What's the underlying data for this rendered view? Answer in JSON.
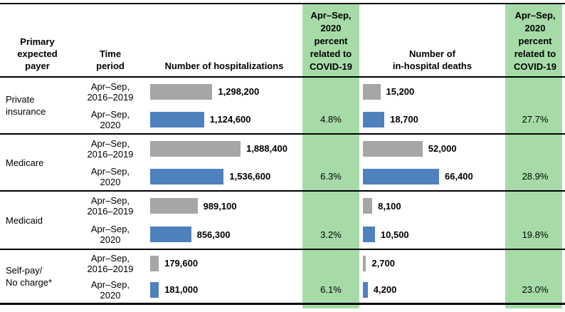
{
  "colors": {
    "green_band": "#A6DBA8",
    "bar_baseline_gray": "#A6A6A6",
    "bar_2020_blue": "#4E81BD",
    "border_black": "#000000"
  },
  "headers": {
    "payer": "Primary\nexpected\npayer",
    "time": "Time\nperiod",
    "hospitalizations": "Number of hospitalizations",
    "covid_pct": "Apr–Sep,\n2020\npercent\nrelated to\nCOVID-19",
    "deaths": "Number of\nin-hospital deaths"
  },
  "rows": [
    {
      "payer": "Private\ninsurance",
      "baseline": {
        "period": "Apr–Sep,\n2016–2019",
        "hosp_label": "1,298,200",
        "hosp_value": 1298200,
        "deaths_label": "15,200",
        "deaths_value": 15200
      },
      "y2020": {
        "period": "Apr–Sep,\n2020",
        "hosp_label": "1,124,600",
        "hosp_value": 1124600,
        "deaths_label": "18,700",
        "deaths_value": 18700,
        "hosp_covid_pct": "4.8%",
        "deaths_covid_pct": "27.7%"
      }
    },
    {
      "payer": "Medicare",
      "baseline": {
        "period": "Apr–Sep,\n2016–2019",
        "hosp_label": "1,888,400",
        "hosp_value": 1888400,
        "deaths_label": "52,000",
        "deaths_value": 52000
      },
      "y2020": {
        "period": "Apr–Sep,\n2020",
        "hosp_label": "1,536,600",
        "hosp_value": 1536600,
        "deaths_label": "66,400",
        "deaths_value": 66400,
        "hosp_covid_pct": "6.3%",
        "deaths_covid_pct": "28.9%"
      }
    },
    {
      "payer": "Medicaid",
      "baseline": {
        "period": "Apr–Sep,\n2016–2019",
        "hosp_label": "989,100",
        "hosp_value": 989100,
        "deaths_label": "8,100",
        "deaths_value": 8100
      },
      "y2020": {
        "period": "Apr–Sep,\n2020",
        "hosp_label": "856,300",
        "hosp_value": 856300,
        "deaths_label": "10,500",
        "deaths_value": 10500,
        "hosp_covid_pct": "3.2%",
        "deaths_covid_pct": "19.8%"
      }
    },
    {
      "payer": "Self-pay/\nNo charge*",
      "baseline": {
        "period": "Apr–Sep,\n2016–2019",
        "hosp_label": "179,600",
        "hosp_value": 179600,
        "deaths_label": "2,700",
        "deaths_value": 2700
      },
      "y2020": {
        "period": "Apr–Sep,\n2020",
        "hosp_label": "181,000",
        "hosp_value": 181000,
        "deaths_label": "4,200",
        "deaths_value": 4200,
        "hosp_covid_pct": "6.1%",
        "deaths_covid_pct": "23.0%"
      }
    }
  ],
  "chart_data": {
    "type": "bar",
    "orientation": "horizontal",
    "categories": [
      "Private insurance",
      "Medicare",
      "Medicaid",
      "Self-pay/No charge*"
    ],
    "series": [
      {
        "name": "Number of hospitalizations, Apr–Sep, 2016–2019",
        "values": [
          1298200,
          1888400,
          989100,
          179600
        ],
        "color": "#A6A6A6"
      },
      {
        "name": "Number of hospitalizations, Apr–Sep, 2020",
        "values": [
          1124600,
          1536600,
          856300,
          181000
        ],
        "color": "#4E81BD"
      },
      {
        "name": "Number of in-hospital deaths, Apr–Sep, 2016–2019",
        "values": [
          15200,
          52000,
          8100,
          2700
        ],
        "color": "#A6A6A6"
      },
      {
        "name": "Number of in-hospital deaths, Apr–Sep, 2020",
        "values": [
          18700,
          66400,
          10500,
          4200
        ],
        "color": "#4E81BD"
      },
      {
        "name": "Apr–Sep, 2020 percent of hospitalizations related to COVID-19",
        "values": [
          4.8,
          6.3,
          3.2,
          6.1
        ]
      },
      {
        "name": "Apr–Sep, 2020 percent of in-hospital deaths related to COVID-19",
        "values": [
          27.7,
          28.9,
          19.8,
          23.0
        ]
      }
    ],
    "legend": "none",
    "grid": false,
    "title": ""
  }
}
